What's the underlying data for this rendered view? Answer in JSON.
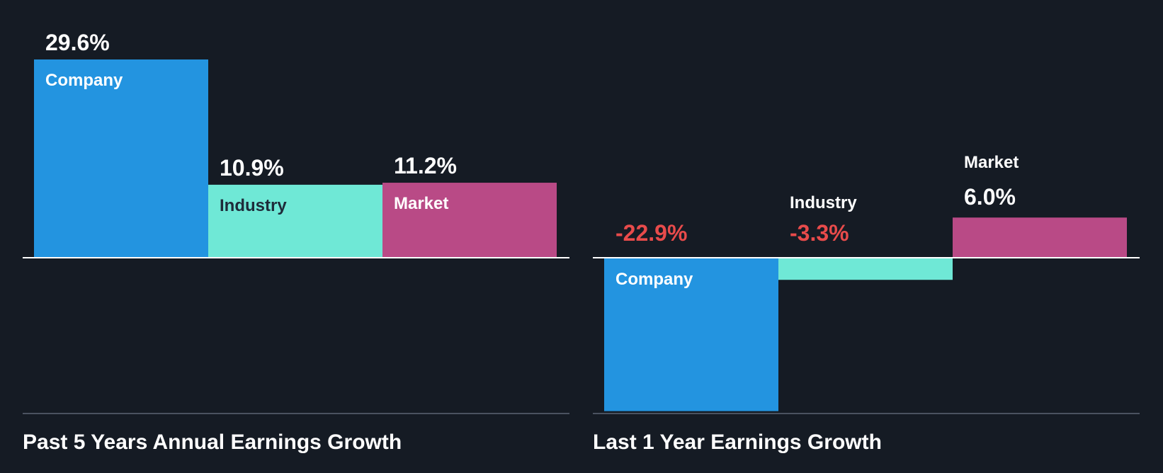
{
  "colors": {
    "background": "#151b24",
    "company": "#2394e0",
    "industry": "#6fe8d6",
    "market": "#b94a86",
    "negative_text": "#e84b4b",
    "positive_text": "#ffffff",
    "industry_bar_label": "#1e2b3a",
    "axis": "#ffffff",
    "baseline": "#4a5260"
  },
  "chart_data": [
    {
      "type": "bar",
      "title": "Past 5 Years Annual Earnings Growth",
      "categories": [
        "Company",
        "Industry",
        "Market"
      ],
      "values": [
        29.6,
        10.9,
        11.2
      ],
      "value_labels": [
        "29.6%",
        "10.9%",
        "11.2%"
      ],
      "unit": "%",
      "ylim": [
        -23,
        30
      ],
      "grid": false,
      "legend": "none"
    },
    {
      "type": "bar",
      "title": "Last 1 Year Earnings Growth",
      "categories": [
        "Company",
        "Industry",
        "Market"
      ],
      "values": [
        -22.9,
        -3.3,
        6.0
      ],
      "value_labels": [
        "-22.9%",
        "-3.3%",
        "6.0%"
      ],
      "unit": "%",
      "ylim": [
        -23,
        30
      ],
      "grid": false,
      "legend": "none"
    }
  ]
}
